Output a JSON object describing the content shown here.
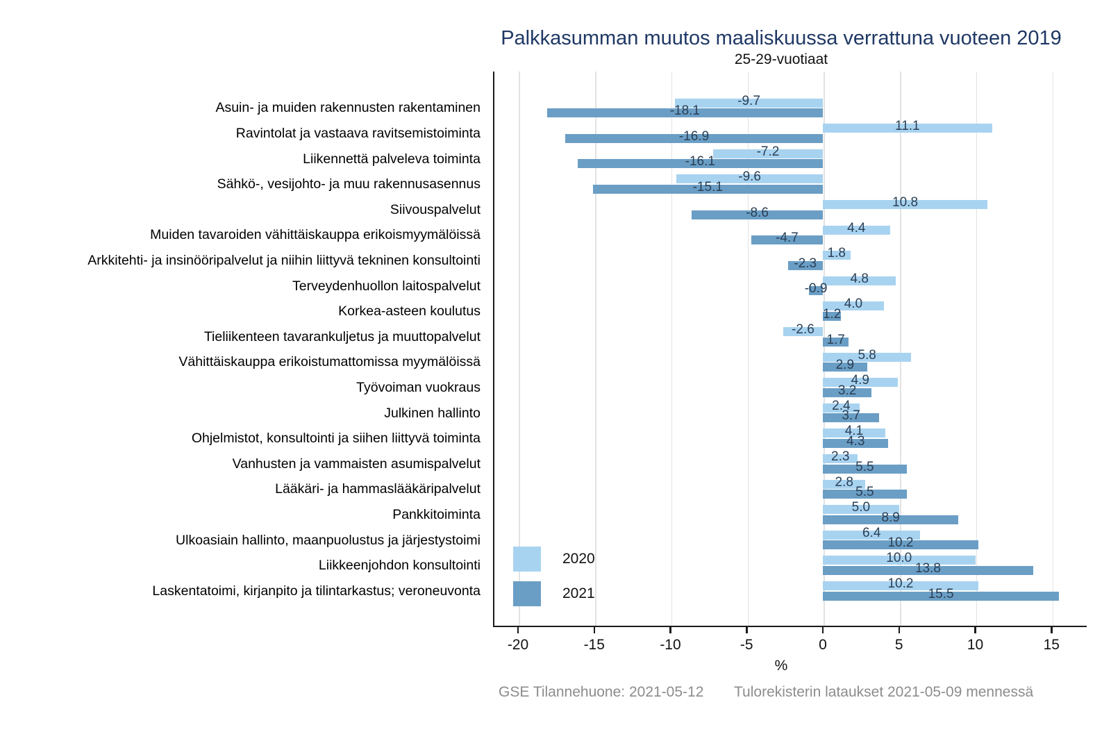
{
  "title": "Palkkasumman muutos maaliskuussa verrattuna vuoteen 2019",
  "subtitle": "25-29-vuotiaat",
  "chart_data": {
    "type": "bar",
    "orientation": "horizontal",
    "title": "Palkkasumman muutos maaliskuussa verrattuna vuoteen 2019",
    "subtitle": "25-29-vuotiaat",
    "xlabel": "%",
    "ylabel": "",
    "xticks": [
      -20,
      -15,
      -10,
      -5,
      0,
      5,
      10,
      15
    ],
    "xlim": [
      -21.6,
      17.3
    ],
    "grid": "vertical-major-only",
    "legend_position": "inside-bottom-left",
    "categories": [
      "Asuin- ja muiden rakennusten rakentaminen",
      "Ravintolat ja vastaava ravitsemistoiminta",
      "Liikennettä palveleva toiminta",
      "Sähkö-, vesijohto- ja muu rakennusasennus",
      "Siivouspalvelut",
      "Muiden tavaroiden vähittäiskauppa erikoismyymälöissä",
      "Arkkitehti- ja insinööripalvelut ja niihin liittyvä tekninen konsultointi",
      "Terveydenhuollon laitospalvelut",
      "Korkea-asteen koulutus",
      "Tieliikenteen tavarankuljetus ja muuttopalvelut",
      "Vähittäiskauppa erikoistumattomissa myymälöissä",
      "Työvoiman vuokraus",
      "Julkinen hallinto",
      "Ohjelmistot, konsultointi ja siihen liittyvä toiminta",
      "Vanhusten ja vammaisten asumispalvelut",
      "Lääkäri- ja hammaslääkäripalvelut",
      "Pankkitoiminta",
      "Ulkoasiain hallinto, maanpuolustus ja järjestystoimi",
      "Liikkeenjohdon konsultointi",
      "Laskentatoimi, kirjanpito ja tilintarkastus; veroneuvonta"
    ],
    "series": [
      {
        "name": "2020",
        "color": "#a8d3f0",
        "values": [
          -9.7,
          11.1,
          -7.2,
          -9.6,
          10.8,
          4.4,
          1.8,
          4.8,
          4.0,
          -2.6,
          5.8,
          4.9,
          2.4,
          4.1,
          2.3,
          2.8,
          5.0,
          6.4,
          10.0,
          10.2
        ]
      },
      {
        "name": "2021",
        "color": "#6a9ec5",
        "values": [
          -18.1,
          -16.9,
          -16.1,
          -15.1,
          -8.6,
          -4.7,
          -2.3,
          -0.9,
          1.2,
          1.7,
          2.9,
          3.2,
          3.7,
          4.3,
          5.5,
          5.5,
          8.9,
          10.2,
          13.8,
          15.5
        ]
      }
    ],
    "value_label_color": "#2a3f55"
  },
  "footer": {
    "left": "GSE Tilannehuone: 2021-05-12",
    "right": "Tulorekisterin lataukset 2021-05-09 mennessä"
  },
  "colors": {
    "title_text": "#1f3864",
    "axis_line": "#1a1a1a",
    "gridline": "#e3e3e3",
    "footer_text": "#8c8c8c",
    "category_text": "#000000"
  }
}
